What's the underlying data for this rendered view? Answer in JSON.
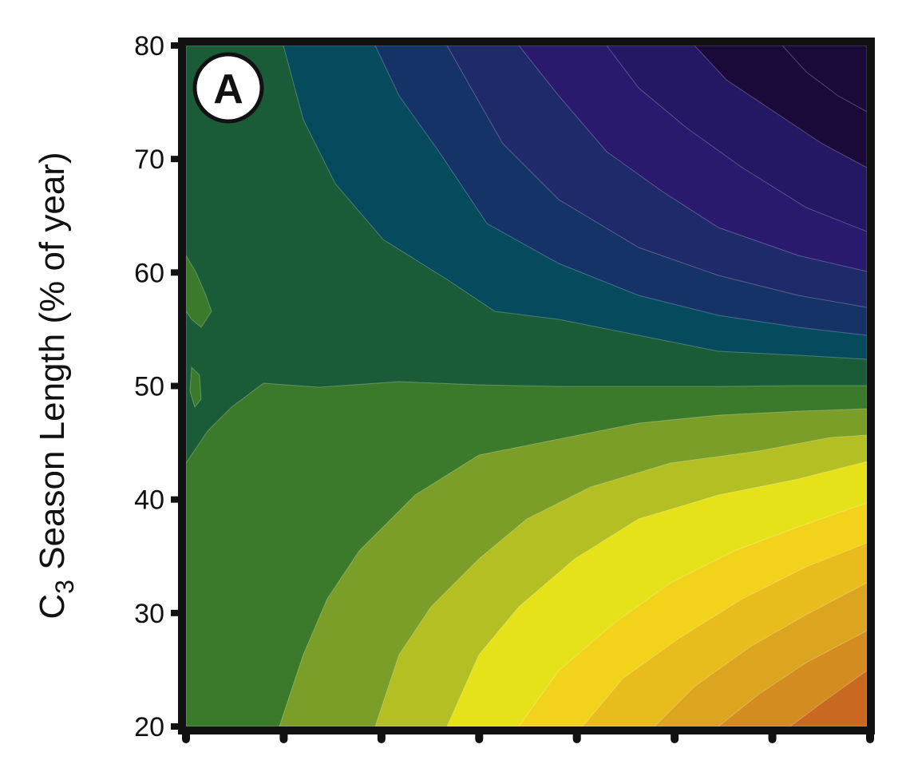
{
  "chart_data": {
    "type": "heatmap",
    "panel_label": "A",
    "title": "",
    "xlabel": "",
    "ylabel_main": "C",
    "ylabel_subscript": "3",
    "ylabel_rest": " Season Length (% of year)",
    "ylim": [
      20,
      80
    ],
    "yticks": [
      "20",
      "30",
      "40",
      "50",
      "60",
      "70",
      "80"
    ],
    "xticks_count": 8,
    "x_tick_labels_shown": false,
    "grid": false,
    "legend": "none",
    "colormap": [
      "#1a0a3a",
      "#241763",
      "#2a1a6e",
      "#1f2a6a",
      "#153366",
      "#0e4261",
      "#064a5e",
      "#1a5c38",
      "#165e36",
      "#3c7a2b",
      "#7a9e27",
      "#b3bf22",
      "#e6e21a",
      "#f2d21a",
      "#e8bc1c",
      "#dca51f",
      "#d28c20",
      "#c96820"
    ]
  }
}
